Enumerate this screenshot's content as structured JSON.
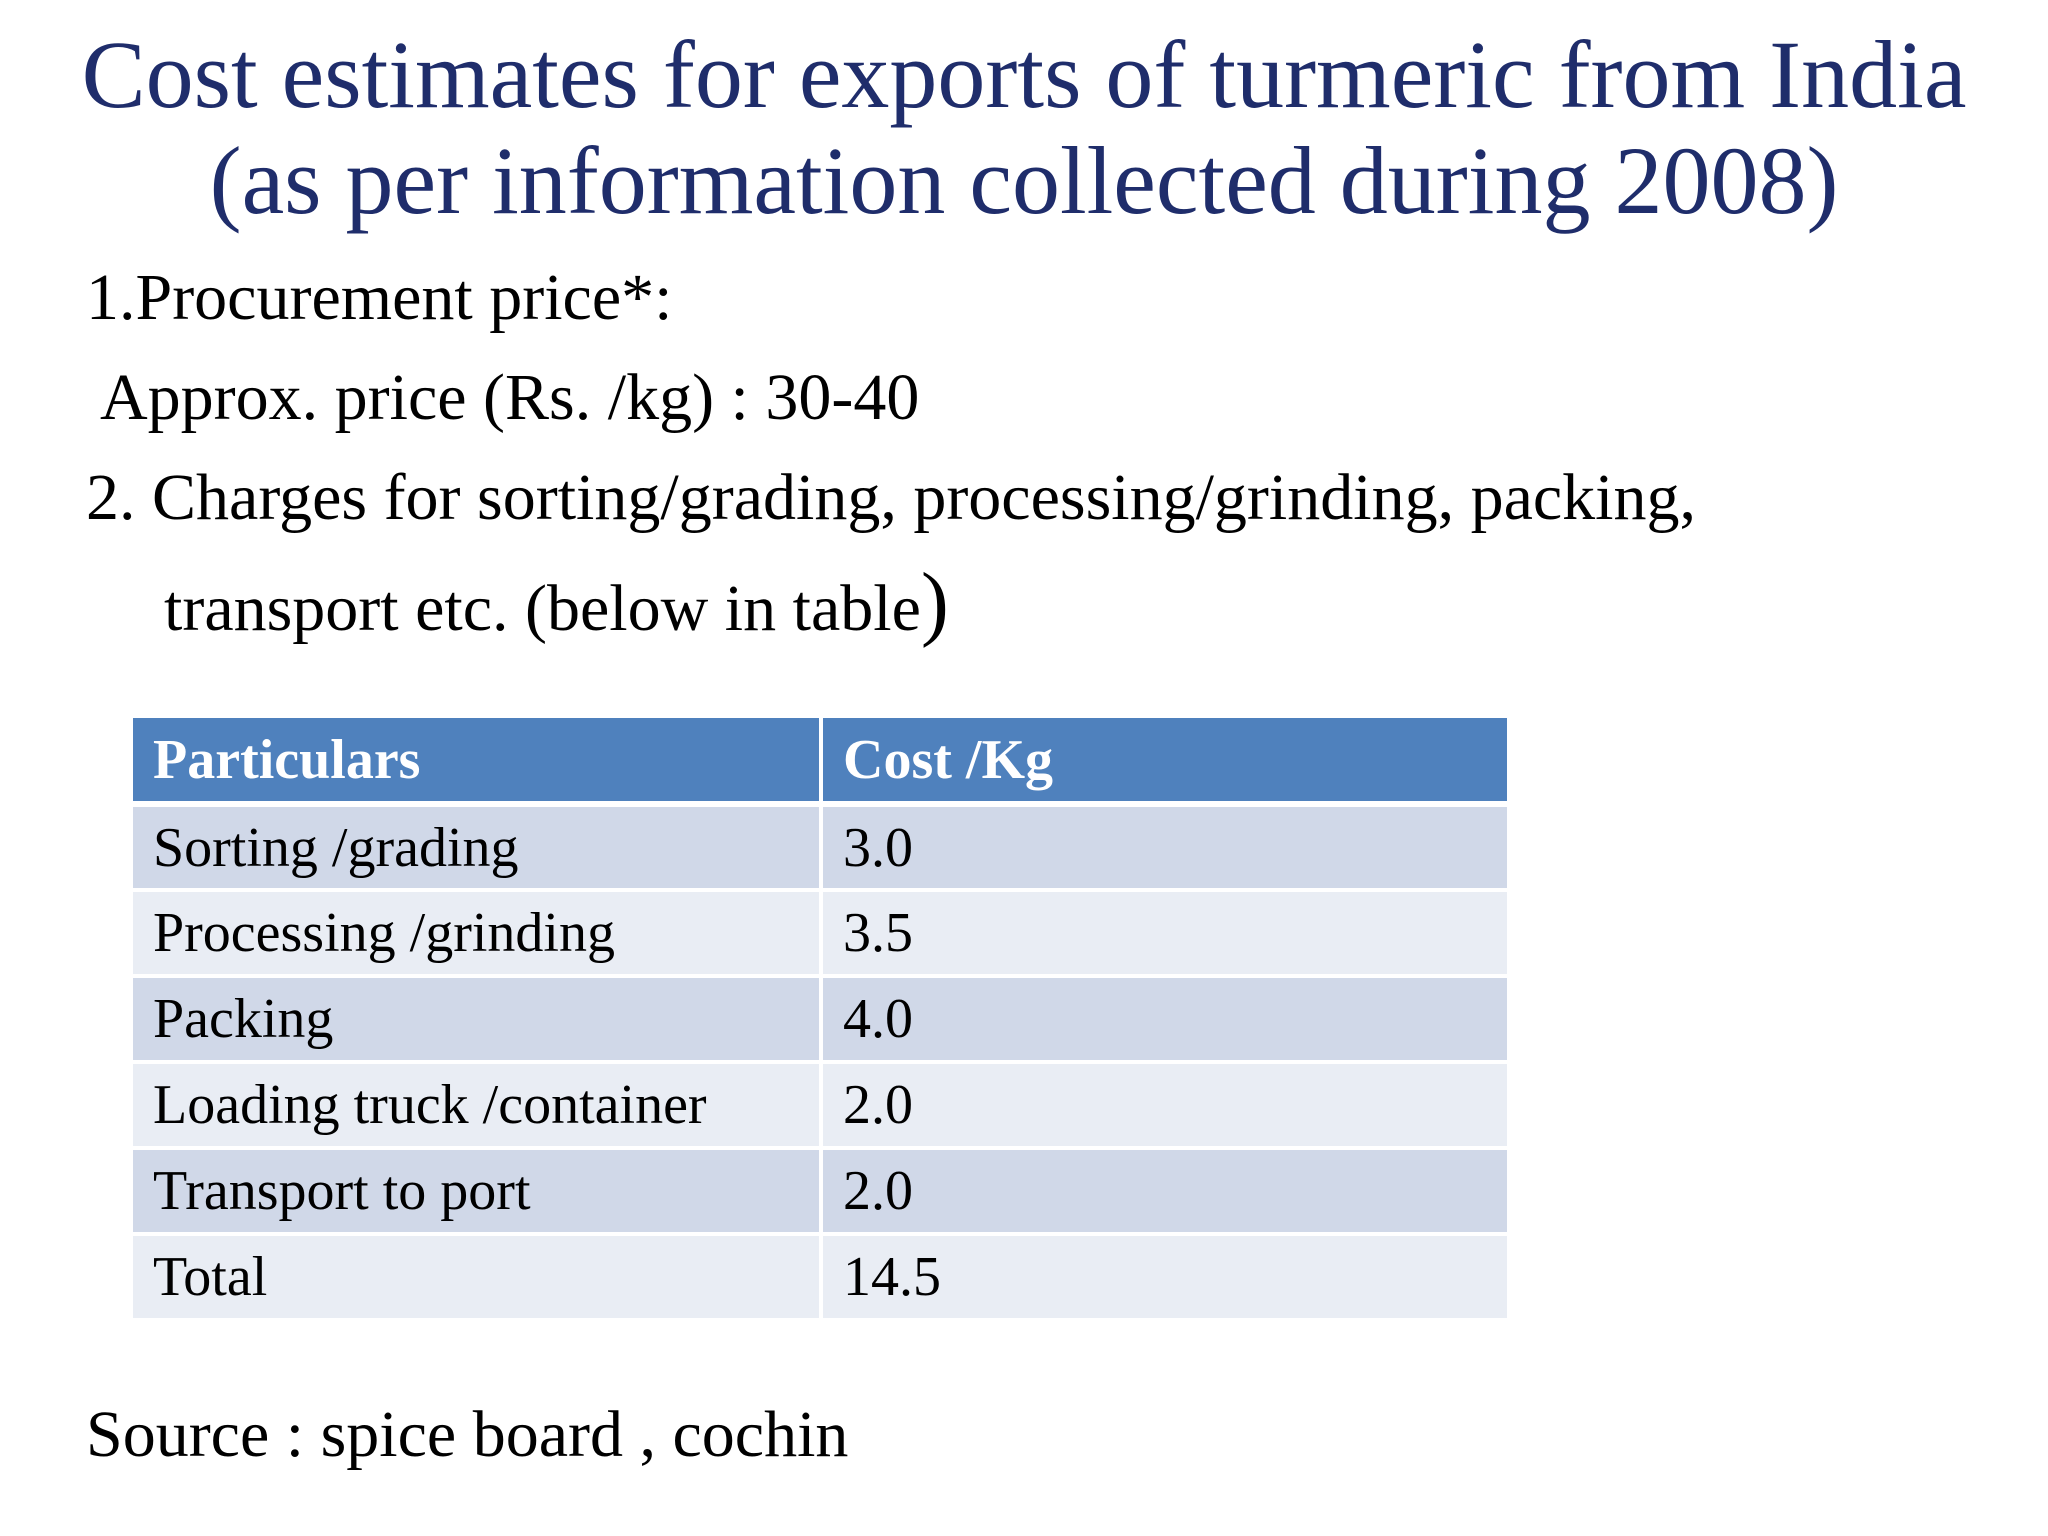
{
  "title": {
    "line1": "Cost estimates for exports of turmeric from India",
    "line2": "(as per information collected during 2008)"
  },
  "body": {
    "item1": "1.Procurement price*:",
    "item1_detail": "Approx. price (Rs. /kg) : 30-40",
    "item2": "2. Charges for sorting/grading, processing/grinding, packing,",
    "item2_cont": "transport etc. (below in table",
    "item2_close": ")"
  },
  "table": {
    "headers": [
      "Particulars",
      "Cost /Kg"
    ],
    "rows": [
      [
        "Sorting /grading",
        "3.0"
      ],
      [
        "Processing /grinding",
        "3.5"
      ],
      [
        "Packing",
        "4.0"
      ],
      [
        "Loading truck /container",
        "2.0"
      ],
      [
        "Transport to port",
        "2.0"
      ],
      [
        "Total",
        "14.5"
      ]
    ]
  },
  "source": "Source : spice board , cochin",
  "colors": {
    "title": "#1f2d6b",
    "header_bg": "#4f81bd",
    "row_dark": "#d0d8e8",
    "row_light": "#e9edf4"
  }
}
